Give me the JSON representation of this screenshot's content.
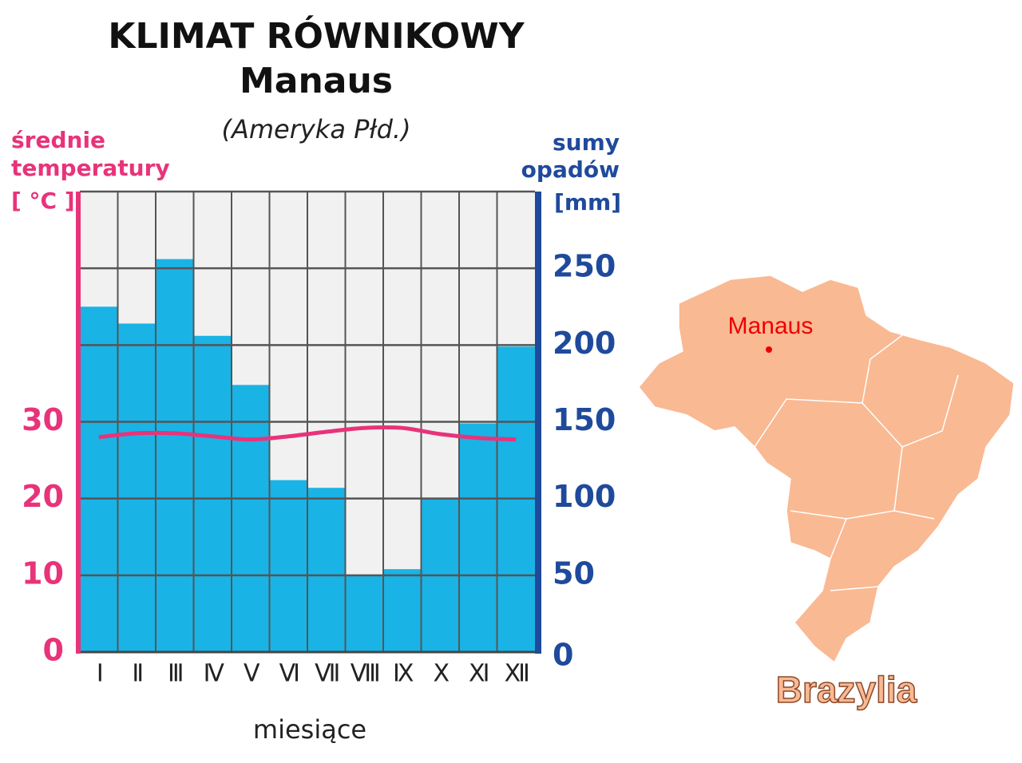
{
  "chart_data": {
    "type": "combo",
    "title": "KLIMAT RÓWNIKOWY",
    "subtitle": "Manaus",
    "region": "(Ameryka Płd.)",
    "y_label": [
      "średnie",
      "temperatury",
      "[ °C ]"
    ],
    "y2_label": [
      "sumy",
      "opadów",
      "[mm]"
    ],
    "x_label": "miesiące",
    "categories": [
      "I",
      "II",
      "III",
      "IV",
      "V",
      "VI",
      "VII",
      "VIII",
      "IX",
      "X",
      "XI",
      "XII"
    ],
    "ylim": [
      0,
      60
    ],
    "yticks": [
      0,
      10,
      20,
      30
    ],
    "y2lim": [
      0,
      300
    ],
    "y2ticks": [
      0,
      50,
      100,
      150,
      200,
      250
    ],
    "grid": true,
    "series": [
      {
        "name": "opady",
        "type": "bar",
        "axis": "y2",
        "color": "#1ab3e6",
        "values": [
          225,
          214,
          256,
          206,
          174,
          112,
          107,
          50,
          54,
          100,
          149,
          199
        ]
      },
      {
        "name": "temperatura",
        "type": "line",
        "axis": "y",
        "color": "#e8337a",
        "values": [
          28.0,
          28.5,
          28.5,
          28.1,
          27.7,
          28.1,
          28.7,
          29.2,
          29.2,
          28.4,
          27.9,
          27.7
        ]
      }
    ]
  },
  "map": {
    "city": "Manaus",
    "country": "Brazylia"
  }
}
